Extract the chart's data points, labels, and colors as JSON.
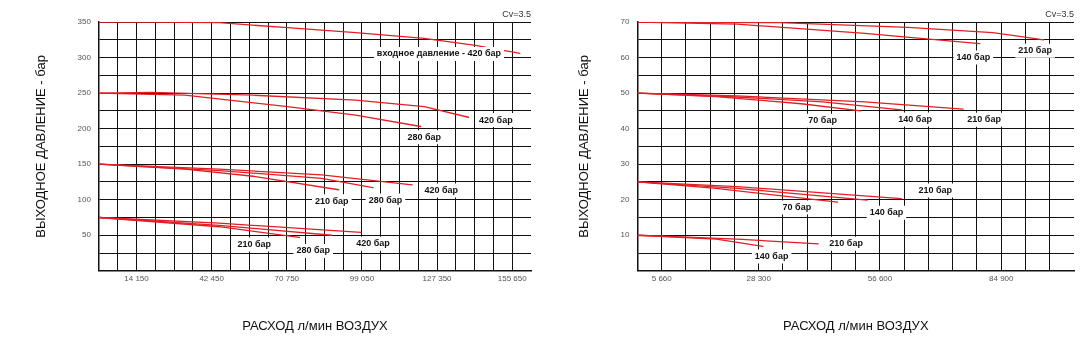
{
  "chart_data": [
    {
      "type": "line",
      "xlabel": "РАСХОД л/мин ВОЗДУХ",
      "ylabel": "ВЫХОДНОЕ ДАВЛЕНИЕ - бар",
      "xlim": [
        0,
        162725
      ],
      "ylim": [
        0,
        350
      ],
      "xticks": [
        {
          "value": 7075,
          "label": null
        },
        {
          "value": 14150,
          "label": "14 150"
        },
        {
          "value": 21225,
          "label": null
        },
        {
          "value": 28300,
          "label": null
        },
        {
          "value": 35375,
          "label": null
        },
        {
          "value": 42450,
          "label": "42 450"
        },
        {
          "value": 49525,
          "label": null
        },
        {
          "value": 56600,
          "label": null
        },
        {
          "value": 63675,
          "label": null
        },
        {
          "value": 70750,
          "label": "70 750"
        },
        {
          "value": 77825,
          "label": null
        },
        {
          "value": 84900,
          "label": null
        },
        {
          "value": 91975,
          "label": null
        },
        {
          "value": 99050,
          "label": "99 050"
        },
        {
          "value": 106125,
          "label": null
        },
        {
          "value": 113200,
          "label": null
        },
        {
          "value": 120275,
          "label": null
        },
        {
          "value": 127350,
          "label": "127 350"
        },
        {
          "value": 134425,
          "label": null
        },
        {
          "value": 141500,
          "label": null
        },
        {
          "value": 148575,
          "label": null
        },
        {
          "value": 155650,
          "label": "155 650"
        }
      ],
      "yticks": [
        {
          "value": 25,
          "label": null
        },
        50,
        {
          "value": 75,
          "label": null
        },
        100,
        {
          "value": 125,
          "label": null
        },
        150,
        {
          "value": 175,
          "label": null
        },
        200,
        {
          "value": 225,
          "label": null
        },
        250,
        {
          "value": 275,
          "label": null
        },
        300,
        {
          "value": 325,
          "label": null
        },
        350
      ],
      "grid": true,
      "legend": false,
      "marker": "none",
      "line_style": "solid",
      "series": [
        {
          "color": "#e31e24",
          "x": [
            0,
            19600,
            45300,
            71000,
            96700,
            122500,
            141800,
            158500
          ],
          "values": [
            350,
            350,
            349,
            342,
            335,
            327,
            317,
            306
          ]
        },
        {
          "color": "#e31e24",
          "x": [
            0,
            19600,
            58100,
            96700,
            122500,
            139200
          ],
          "values": [
            250,
            251,
            247,
            240,
            231,
            216
          ]
        },
        {
          "color": "#e31e24",
          "x": [
            0,
            32400,
            71000,
            96700,
            121200
          ],
          "values": [
            250,
            247,
            231,
            219,
            203
          ]
        },
        {
          "color": "#e31e24",
          "x": [
            0,
            45300,
            83900,
            118000
          ],
          "values": [
            150,
            143,
            135,
            121
          ]
        },
        {
          "color": "#e31e24",
          "x": [
            0,
            45300,
            83900,
            103200
          ],
          "values": [
            150,
            141,
            130,
            117
          ]
        },
        {
          "color": "#e31e24",
          "x": [
            0,
            32400,
            58100,
            90300
          ],
          "values": [
            150,
            143,
            133,
            114
          ]
        },
        {
          "color": "#e31e24",
          "x": [
            0,
            45300,
            98700
          ],
          "values": [
            75,
            67,
            54
          ]
        },
        {
          "color": "#e31e24",
          "x": [
            0,
            45300,
            87700
          ],
          "values": [
            75,
            64,
            50
          ]
        },
        {
          "color": "#e31e24",
          "x": [
            0,
            45300,
            75500
          ],
          "values": [
            75,
            62,
            47
          ]
        }
      ],
      "annotations": [
        "Cv=3.5",
        "входное давление - 420 бар",
        {
          "text": "420 бар",
          "x": 149500,
          "y": 212
        },
        {
          "text": "280 бар",
          "x": 122500,
          "y": 188
        },
        {
          "text": "420 бар",
          "x": 128900,
          "y": 113
        },
        {
          "text": "280 бар",
          "x": 107900,
          "y": 99
        },
        {
          "text": "210 бар",
          "x": 87700,
          "y": 98
        },
        {
          "text": "420 бар",
          "x": 103200,
          "y": 38
        },
        {
          "text": "280 бар",
          "x": 80700,
          "y": 28
        },
        {
          "text": "210 бар",
          "x": 58500,
          "y": 37
        }
      ]
    },
    {
      "type": "line",
      "xlabel": "РАСХОД л/мин ВОЗДУХ",
      "ylabel": "ВЫХОДНОЕ ДАВЛЕНИЕ - бар",
      "xlim": [
        0,
        101880
      ],
      "ylim": [
        0,
        70
      ],
      "xticks": [
        {
          "value": 5660,
          "label": "5 660"
        },
        {
          "value": 11320,
          "label": null
        },
        {
          "value": 16980,
          "label": null
        },
        {
          "value": 22640,
          "label": null
        },
        {
          "value": 28300,
          "label": "28 300"
        },
        {
          "value": 33960,
          "label": null
        },
        {
          "value": 39620,
          "label": null
        },
        {
          "value": 45280,
          "label": null
        },
        {
          "value": 50940,
          "label": null
        },
        {
          "value": 56600,
          "label": "56 600"
        },
        {
          "value": 62260,
          "label": null
        },
        {
          "value": 67920,
          "label": null
        },
        {
          "value": 73580,
          "label": null
        },
        {
          "value": 79240,
          "label": null
        },
        {
          "value": 84900,
          "label": "84 900"
        },
        {
          "value": 90560,
          "label": null
        },
        {
          "value": 96220,
          "label": null
        }
      ],
      "yticks": [
        {
          "value": 5,
          "label": null
        },
        10,
        {
          "value": 15,
          "label": null
        },
        20,
        {
          "value": 25,
          "label": null
        },
        30,
        {
          "value": 35,
          "label": null
        },
        40,
        {
          "value": 45,
          "label": null
        },
        50,
        {
          "value": 55,
          "label": null
        },
        60,
        {
          "value": 65,
          "label": null
        },
        70
      ],
      "grid": true,
      "legend": false,
      "marker": "none",
      "line_style": "solid",
      "series": [
        {
          "color": "#e31e24",
          "x": [
            0,
            33300,
            63100,
            82900,
            94800
          ],
          "values": [
            70,
            69.8,
            68.5,
            67,
            65
          ]
        },
        {
          "color": "#e31e24",
          "x": [
            0,
            23300,
            53100,
            79900
          ],
          "values": [
            70,
            69.4,
            66.8,
            63.9
          ]
        },
        {
          "color": "#e31e24",
          "x": [
            0,
            23300,
            53100,
            76000
          ],
          "values": [
            50,
            49.2,
            47.5,
            45.5
          ]
        },
        {
          "color": "#e31e24",
          "x": [
            0,
            23300,
            43200,
            61600
          ],
          "values": [
            50,
            48.9,
            47.5,
            45.3
          ]
        },
        {
          "color": "#e31e24",
          "x": [
            0,
            18400,
            38200,
            52100
          ],
          "values": [
            50,
            49,
            47,
            45
          ]
        },
        {
          "color": "#e31e24",
          "x": [
            0,
            23300,
            61600
          ],
          "values": [
            25,
            23.7,
            20.3
          ]
        },
        {
          "color": "#e31e24",
          "x": [
            0,
            23300,
            53600
          ],
          "values": [
            25,
            23.2,
            19.9
          ]
        },
        {
          "color": "#e31e24",
          "x": [
            0,
            18400,
            46700
          ],
          "values": [
            25,
            23.2,
            19.3
          ]
        },
        {
          "color": "#e31e24",
          "x": [
            0,
            23300,
            42200
          ],
          "values": [
            10,
            8.9,
            7.6
          ]
        },
        {
          "color": "#e31e24",
          "x": [
            0,
            18400,
            29300
          ],
          "values": [
            10,
            8.9,
            6.9
          ]
        }
      ],
      "annotations": [
        "Cv=3.5",
        {
          "text": "210 бар",
          "x": 92800,
          "y": 61.9
        },
        {
          "text": "140 бар",
          "x": 78400,
          "y": 60
        },
        {
          "text": "70 бар",
          "x": 43200,
          "y": 42.2
        },
        {
          "text": "140 бар",
          "x": 64800,
          "y": 42.6
        },
        {
          "text": "210 бар",
          "x": 80900,
          "y": 42.5
        },
        {
          "text": "210 бар",
          "x": 69500,
          "y": 22.6
        },
        {
          "text": "70 бар",
          "x": 37200,
          "y": 17.8
        },
        {
          "text": "140 бар",
          "x": 58100,
          "y": 16.3
        },
        {
          "text": "210 бар",
          "x": 48700,
          "y": 7.6
        },
        {
          "text": "140 бар",
          "x": 31300,
          "y": 4
        }
      ]
    }
  ]
}
